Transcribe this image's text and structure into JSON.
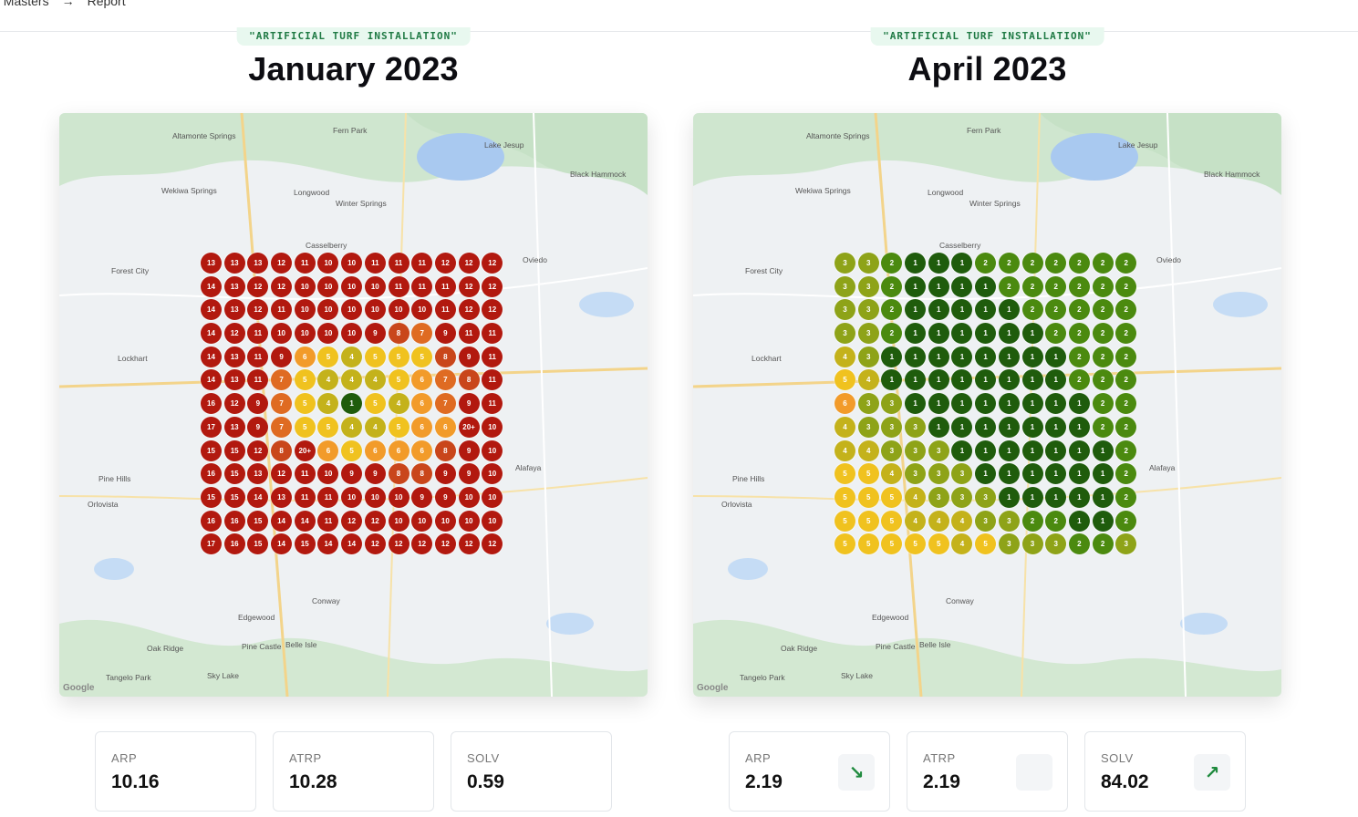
{
  "breadcrumb": {
    "items": [
      "f Masters",
      "Report"
    ],
    "separator_icon": "arrow-right-icon"
  },
  "panels": [
    {
      "tag": "\"ARTIFICIAL TURF INSTALLATION\"",
      "title": "January 2023",
      "grid": [
        [
          "13",
          "13",
          "13",
          "12",
          "11",
          "10",
          "10",
          "11",
          "11",
          "11",
          "12",
          "12",
          "12"
        ],
        [
          "14",
          "13",
          "12",
          "12",
          "10",
          "10",
          "10",
          "10",
          "11",
          "11",
          "11",
          "12",
          "12"
        ],
        [
          "14",
          "13",
          "12",
          "11",
          "10",
          "10",
          "10",
          "10",
          "10",
          "10",
          "11",
          "12",
          "12"
        ],
        [
          "14",
          "12",
          "11",
          "10",
          "10",
          "10",
          "10",
          "9",
          "8",
          "7",
          "9",
          "11",
          "11"
        ],
        [
          "14",
          "13",
          "11",
          "9",
          "6",
          "5",
          "4",
          "5",
          "5",
          "5",
          "8",
          "9",
          "11"
        ],
        [
          "14",
          "13",
          "11",
          "7",
          "5",
          "4",
          "4",
          "4",
          "5",
          "6",
          "7",
          "8",
          "11"
        ],
        [
          "16",
          "12",
          "9",
          "7",
          "5",
          "4",
          "1",
          "5",
          "4",
          "6",
          "7",
          "9",
          "11"
        ],
        [
          "17",
          "13",
          "9",
          "7",
          "5",
          "5",
          "4",
          "4",
          "5",
          "6",
          "6",
          "20+",
          "10"
        ],
        [
          "15",
          "15",
          "12",
          "8",
          "20+",
          "6",
          "5",
          "6",
          "6",
          "6",
          "8",
          "9",
          "10"
        ],
        [
          "16",
          "15",
          "13",
          "12",
          "11",
          "10",
          "9",
          "9",
          "8",
          "8",
          "9",
          "9",
          "10"
        ],
        [
          "15",
          "15",
          "14",
          "13",
          "11",
          "11",
          "10",
          "10",
          "10",
          "9",
          "9",
          "10",
          "10"
        ],
        [
          "16",
          "16",
          "15",
          "14",
          "14",
          "11",
          "12",
          "12",
          "10",
          "10",
          "10",
          "10",
          "10"
        ],
        [
          "17",
          "16",
          "15",
          "14",
          "15",
          "14",
          "14",
          "12",
          "12",
          "12",
          "12",
          "12",
          "12"
        ]
      ],
      "metrics": [
        {
          "label": "ARP",
          "value": "10.16",
          "badge": ""
        },
        {
          "label": "ATRP",
          "value": "10.28",
          "badge": ""
        },
        {
          "label": "SOLV",
          "value": "0.59",
          "badge": ""
        }
      ]
    },
    {
      "tag": "\"ARTIFICIAL TURF INSTALLATION\"",
      "title": "April 2023",
      "grid": [
        [
          "3",
          "3",
          "2",
          "1",
          "1",
          "1",
          "2",
          "2",
          "2",
          "2",
          "2",
          "2",
          "2"
        ],
        [
          "3",
          "3",
          "2",
          "1",
          "1",
          "1",
          "1",
          "2",
          "2",
          "2",
          "2",
          "2",
          "2"
        ],
        [
          "3",
          "3",
          "2",
          "1",
          "1",
          "1",
          "1",
          "1",
          "2",
          "2",
          "2",
          "2",
          "2"
        ],
        [
          "3",
          "3",
          "2",
          "1",
          "1",
          "1",
          "1",
          "1",
          "1",
          "2",
          "2",
          "2",
          "2"
        ],
        [
          "4",
          "3",
          "1",
          "1",
          "1",
          "1",
          "1",
          "1",
          "1",
          "1",
          "2",
          "2",
          "2"
        ],
        [
          "5",
          "4",
          "1",
          "1",
          "1",
          "1",
          "1",
          "1",
          "1",
          "1",
          "2",
          "2",
          "2"
        ],
        [
          "6",
          "3",
          "3",
          "1",
          "1",
          "1",
          "1",
          "1",
          "1",
          "1",
          "1",
          "2",
          "2"
        ],
        [
          "4",
          "3",
          "3",
          "3",
          "1",
          "1",
          "1",
          "1",
          "1",
          "1",
          "1",
          "2",
          "2"
        ],
        [
          "4",
          "4",
          "3",
          "3",
          "3",
          "1",
          "1",
          "1",
          "1",
          "1",
          "1",
          "1",
          "2"
        ],
        [
          "5",
          "5",
          "4",
          "3",
          "3",
          "3",
          "1",
          "1",
          "1",
          "1",
          "1",
          "1",
          "2"
        ],
        [
          "5",
          "5",
          "5",
          "4",
          "3",
          "3",
          "3",
          "1",
          "1",
          "1",
          "1",
          "1",
          "2"
        ],
        [
          "5",
          "5",
          "5",
          "4",
          "4",
          "4",
          "3",
          "3",
          "2",
          "2",
          "1",
          "1",
          "2"
        ],
        [
          "5",
          "5",
          "5",
          "5",
          "5",
          "4",
          "5",
          "3",
          "3",
          "3",
          "2",
          "2",
          "3"
        ]
      ],
      "metrics": [
        {
          "label": "ARP",
          "value": "2.19",
          "badge": "↘"
        },
        {
          "label": "ATRP",
          "value": "2.19",
          "badge": " "
        },
        {
          "label": "SOLV",
          "value": "84.02",
          "badge": "↗"
        }
      ]
    }
  ],
  "map_labels": [
    "Casselberry",
    "Oviedo",
    "Forest City",
    "Lockhart",
    "Wekiwa Springs",
    "Longwood",
    "Winter Springs",
    "Pine Hills",
    "Orlovista",
    "Conway",
    "Edgewood",
    "Oak Ridge",
    "Tangelo Park",
    "Sky Lake",
    "Alafaya",
    "Black Hammock",
    "Belle Isle",
    "Pine Castle",
    "Fern Park",
    "Altamonte Springs",
    "Lake Jesup"
  ],
  "google_label": "Google",
  "colors": {
    "rank_1": "#1f5c0c",
    "rank_2": "#4b8a0f",
    "rank_3": "#8ea318",
    "rank_4": "#c4b21b",
    "rank_5": "#f0c21f",
    "rank_6": "#f29b2a",
    "rank_7": "#df6b22",
    "rank_8": "#c9461b",
    "rank_9_plus": "#b2190f"
  }
}
